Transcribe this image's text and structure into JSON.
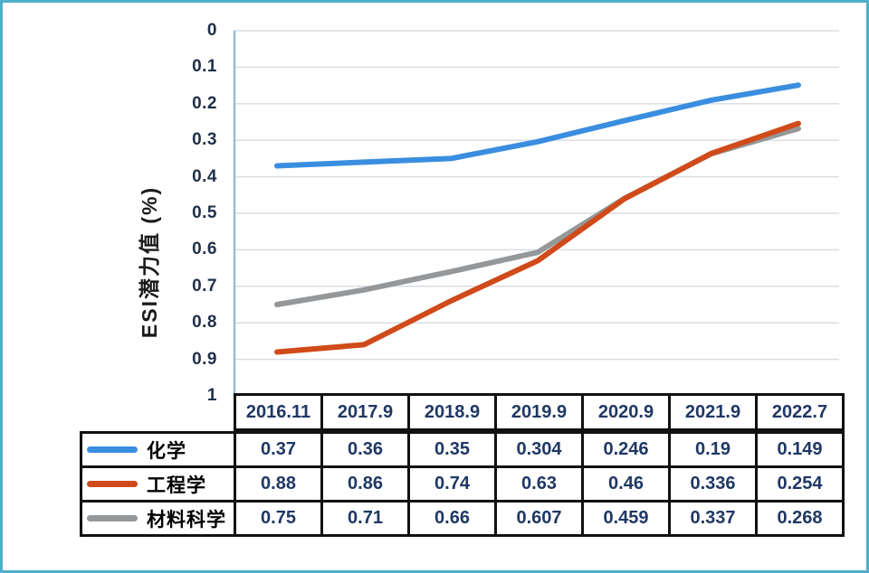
{
  "figure": {
    "background_color": "#ffffff",
    "frame_border_color": "#4FAFC8",
    "table_border_color": "#111111",
    "grid_color": "#D9DEE4",
    "axis_line_color": "#92BFD3",
    "tick_text_color": "#1E2F4A",
    "value_text_color": "#1F3864"
  },
  "chart_data": {
    "type": "line",
    "title": "",
    "ylabel": "ESI潜力值 (%)",
    "xlabel": "",
    "x_categories": [
      "2016.11",
      "2017.9",
      "2018.9",
      "2019.9",
      "2020.9",
      "2021.9",
      "2022.7"
    ],
    "y_axis": {
      "min": 0,
      "max": 1,
      "inverted": true,
      "step": 0.1
    },
    "y_ticks": [
      {
        "v": 0,
        "label": "0"
      },
      {
        "v": 0.1,
        "label": "0.1"
      },
      {
        "v": 0.2,
        "label": "0.2"
      },
      {
        "v": 0.3,
        "label": "0.3"
      },
      {
        "v": 0.4,
        "label": "0.4"
      },
      {
        "v": 0.5,
        "label": "0.5"
      },
      {
        "v": 0.6,
        "label": "0.6"
      },
      {
        "v": 0.7,
        "label": "0.7"
      },
      {
        "v": 0.8,
        "label": "0.8"
      },
      {
        "v": 0.9,
        "label": "0.9"
      },
      {
        "v": 1,
        "label": "1"
      }
    ],
    "grid": true,
    "legend_position": "table-left",
    "series": [
      {
        "id": "chemistry",
        "name": "化学",
        "color": "#3A8EE0",
        "values": [
          0.37,
          0.36,
          0.35,
          0.304,
          0.246,
          0.19,
          0.149
        ],
        "value_labels": [
          "0.37",
          "0.36",
          "0.35",
          "0.304",
          "0.246",
          "0.19",
          "0.149"
        ]
      },
      {
        "id": "engineering",
        "name": "工程学",
        "color": "#D04A1A",
        "values": [
          0.88,
          0.86,
          0.74,
          0.63,
          0.46,
          0.336,
          0.254
        ],
        "value_labels": [
          "0.88",
          "0.86",
          "0.74",
          "0.63",
          "0.46",
          "0.336",
          "0.254"
        ]
      },
      {
        "id": "materials",
        "name": "材料科学",
        "color": "#95989A",
        "values": [
          0.75,
          0.71,
          0.66,
          0.607,
          0.459,
          0.337,
          0.268
        ],
        "value_labels": [
          "0.75",
          "0.71",
          "0.66",
          "0.607",
          "0.459",
          "0.337",
          "0.268"
        ]
      }
    ]
  }
}
